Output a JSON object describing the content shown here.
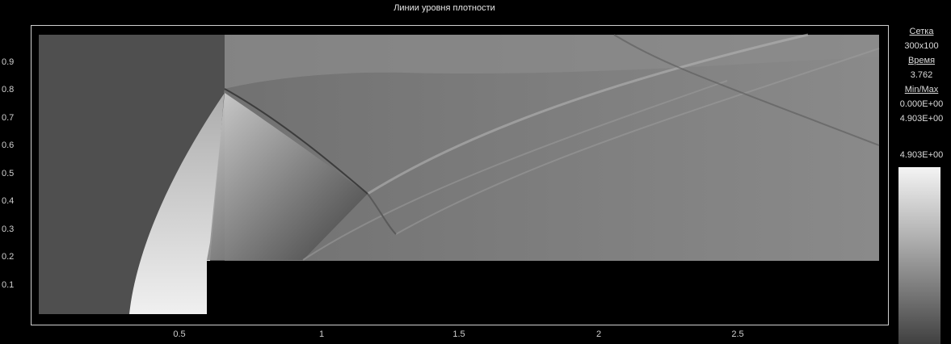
{
  "window": {
    "title": "Линии уровня плотности"
  },
  "axes": {
    "y_ticks": [
      "0.9",
      "0.8",
      "0.7",
      "0.6",
      "0.5",
      "0.4",
      "0.3",
      "0.2",
      "0.1"
    ],
    "x_ticks": [
      "0.5",
      "1",
      "1.5",
      "2",
      "2.5"
    ]
  },
  "sidebar": {
    "grid_label": "Сетка",
    "grid_value": "300x100",
    "time_label": "Время",
    "time_value": "3.762",
    "minmax_label": "Min/Max",
    "min_value": "0.000E+00",
    "max_value": "4.903E+00",
    "colorbar_top_value": "4.903E+00"
  },
  "colors": {
    "background": "#000000",
    "frame": "#cfcfcf",
    "text": "#dcdcdc"
  }
}
